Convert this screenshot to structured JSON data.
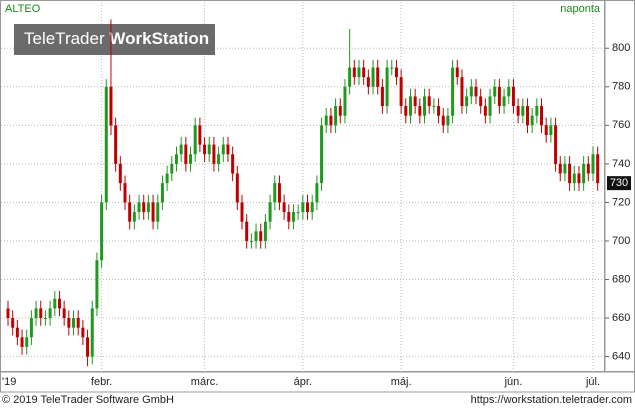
{
  "chart_data": {
    "type": "candlestick",
    "title": "ALTEO",
    "subtitle": "naponta",
    "watermark": [
      "TeleTrader",
      "WorkStation"
    ],
    "footer_left": "© 2019 TeleTrader Software GmbH",
    "footer_right": "https://workstation.teletrader.com",
    "up_color": "#1f9a1f",
    "down_color": "#c00000",
    "grid": true,
    "ylim": [
      632,
      824
    ],
    "yticks": [
      640,
      660,
      680,
      700,
      720,
      740,
      760,
      780,
      800
    ],
    "categories": [
      "'19",
      null,
      null,
      null,
      null,
      null,
      null,
      null,
      null,
      null,
      null,
      null,
      null,
      null,
      null,
      null,
      null,
      null,
      null,
      null,
      "febr.",
      null,
      null,
      null,
      null,
      null,
      null,
      null,
      null,
      null,
      null,
      null,
      null,
      null,
      null,
      null,
      null,
      null,
      null,
      null,
      null,
      null,
      "márc.",
      null,
      null,
      null,
      null,
      null,
      null,
      null,
      null,
      null,
      null,
      null,
      null,
      null,
      null,
      null,
      null,
      null,
      null,
      null,
      null,
      "ápr.",
      null,
      null,
      null,
      null,
      null,
      null,
      null,
      null,
      null,
      null,
      null,
      null,
      null,
      null,
      null,
      null,
      null,
      null,
      null,
      null,
      "máj.",
      null,
      null,
      null,
      null,
      null,
      null,
      null,
      null,
      null,
      null,
      null,
      null,
      null,
      null,
      null,
      null,
      null,
      null,
      null,
      null,
      null,
      null,
      null,
      "jún.",
      null,
      null,
      null,
      null,
      null,
      null,
      null,
      null,
      null,
      null,
      null,
      null,
      null,
      null,
      null,
      null,
      "júl.",
      null
    ],
    "open": [
      665,
      660,
      655,
      650,
      645,
      650,
      660,
      665,
      660,
      660,
      665,
      670,
      665,
      660,
      655,
      660,
      655,
      650,
      640,
      665,
      690,
      720,
      780,
      760,
      740,
      730,
      720,
      710,
      715,
      720,
      715,
      720,
      710,
      720,
      730,
      735,
      740,
      745,
      750,
      740,
      745,
      760,
      750,
      745,
      750,
      740,
      745,
      750,
      745,
      735,
      720,
      710,
      700,
      700,
      705,
      700,
      710,
      720,
      730,
      720,
      715,
      710,
      715,
      715,
      720,
      715,
      720,
      730,
      760,
      765,
      760,
      770,
      765,
      780,
      790,
      785,
      790,
      785,
      780,
      790,
      780,
      770,
      790,
      790,
      785,
      770,
      765,
      775,
      770,
      765,
      775,
      770,
      770,
      765,
      760,
      765,
      790,
      785,
      770,
      775,
      780,
      775,
      770,
      765,
      775,
      780,
      770,
      775,
      780,
      770,
      765,
      770,
      760,
      765,
      770,
      760,
      755,
      760,
      740,
      735,
      740,
      730,
      735,
      730,
      740,
      735,
      745
    ],
    "high": [
      669,
      664,
      659,
      654,
      654,
      664,
      669,
      669,
      664,
      669,
      674,
      674,
      669,
      664,
      664,
      664,
      659,
      654,
      669,
      694,
      724,
      784,
      815,
      764,
      744,
      734,
      724,
      719,
      724,
      724,
      724,
      724,
      724,
      734,
      739,
      744,
      749,
      754,
      754,
      749,
      764,
      764,
      754,
      754,
      754,
      749,
      754,
      754,
      749,
      739,
      724,
      714,
      704,
      709,
      709,
      714,
      724,
      734,
      734,
      724,
      719,
      719,
      719,
      724,
      724,
      724,
      734,
      764,
      769,
      769,
      774,
      774,
      784,
      810,
      794,
      794,
      794,
      789,
      794,
      794,
      784,
      794,
      794,
      794,
      789,
      774,
      779,
      779,
      774,
      779,
      779,
      774,
      774,
      769,
      769,
      794,
      794,
      789,
      779,
      784,
      784,
      779,
      774,
      779,
      784,
      784,
      779,
      784,
      784,
      774,
      774,
      774,
      769,
      774,
      774,
      764,
      764,
      764,
      744,
      744,
      744,
      739,
      739,
      744,
      744,
      749,
      749
    ],
    "low": [
      656,
      651,
      646,
      641,
      641,
      646,
      656,
      656,
      656,
      656,
      661,
      661,
      656,
      651,
      651,
      651,
      646,
      635,
      636,
      661,
      686,
      716,
      755,
      736,
      726,
      716,
      706,
      706,
      711,
      711,
      711,
      706,
      706,
      716,
      726,
      731,
      736,
      741,
      736,
      736,
      741,
      746,
      741,
      741,
      736,
      736,
      741,
      741,
      731,
      716,
      706,
      696,
      696,
      696,
      696,
      696,
      706,
      716,
      716,
      711,
      706,
      706,
      711,
      711,
      711,
      711,
      716,
      726,
      756,
      756,
      756,
      761,
      761,
      776,
      781,
      781,
      781,
      776,
      776,
      776,
      766,
      766,
      786,
      781,
      766,
      761,
      761,
      766,
      761,
      761,
      766,
      766,
      761,
      756,
      756,
      761,
      781,
      766,
      766,
      771,
      771,
      766,
      761,
      761,
      771,
      766,
      766,
      771,
      766,
      761,
      761,
      756,
      756,
      761,
      756,
      751,
      751,
      736,
      731,
      731,
      726,
      726,
      726,
      726,
      731,
      731,
      726
    ],
    "close": [
      660,
      655,
      650,
      645,
      650,
      660,
      665,
      660,
      660,
      665,
      670,
      665,
      660,
      655,
      660,
      655,
      650,
      640,
      665,
      690,
      720,
      780,
      760,
      740,
      730,
      720,
      710,
      715,
      720,
      715,
      720,
      710,
      720,
      730,
      735,
      740,
      745,
      750,
      740,
      745,
      760,
      750,
      745,
      750,
      740,
      745,
      750,
      745,
      735,
      720,
      710,
      700,
      700,
      705,
      700,
      710,
      720,
      730,
      720,
      715,
      710,
      715,
      715,
      720,
      715,
      720,
      730,
      760,
      765,
      760,
      770,
      765,
      780,
      790,
      785,
      790,
      785,
      780,
      790,
      780,
      770,
      790,
      790,
      785,
      770,
      765,
      775,
      770,
      765,
      775,
      770,
      770,
      765,
      760,
      765,
      790,
      785,
      770,
      775,
      780,
      775,
      770,
      765,
      775,
      780,
      770,
      775,
      780,
      770,
      765,
      770,
      760,
      765,
      770,
      760,
      755,
      760,
      740,
      735,
      740,
      730,
      735,
      730,
      740,
      735,
      745,
      730
    ]
  }
}
